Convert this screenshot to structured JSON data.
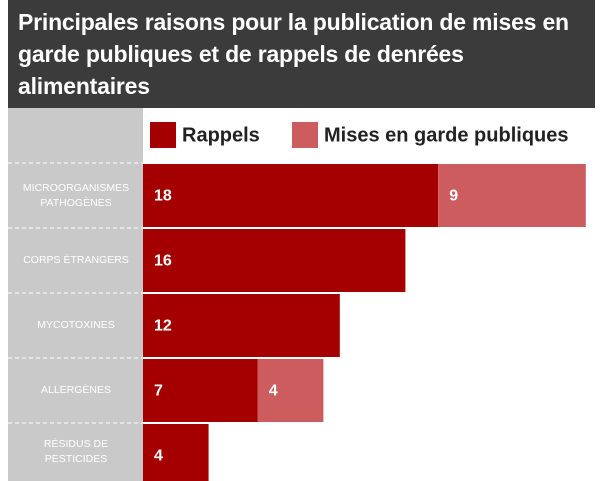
{
  "chart_data": {
    "type": "bar",
    "orientation": "horizontal",
    "stacked": true,
    "title": "Principales raisons pour la publication de mises en garde publiques et de rappels de denrées alimentaires",
    "categories": [
      "MICROORGANISMES PATHOGÈNES",
      "CORPS ÉTRANGERS",
      "MYCOTOXINES",
      "ALLERGÈNES",
      "RÉSIDUS DE PESTICIDES"
    ],
    "series": [
      {
        "name": "Rappels",
        "color": "#a50000",
        "values": [
          18,
          16,
          12,
          7,
          4
        ]
      },
      {
        "name": "Mises en garde publiques",
        "color": "#cc5c5e",
        "values": [
          9,
          null,
          null,
          4,
          null
        ]
      }
    ],
    "data_labels": true
  }
}
